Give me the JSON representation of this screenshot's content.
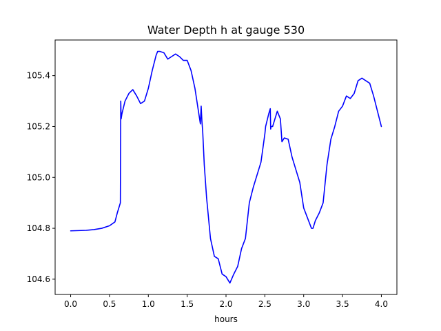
{
  "chart_data": {
    "type": "line",
    "title": "Water Depth h at gauge 530",
    "xlabel": "hours",
    "ylabel": "",
    "xlim": [
      -0.2,
      4.2
    ],
    "ylim": [
      104.54,
      105.54
    ],
    "xticks": [
      0.0,
      0.5,
      1.0,
      1.5,
      2.0,
      2.5,
      3.0,
      3.5,
      4.0
    ],
    "xtick_labels": [
      "0.0",
      "0.5",
      "1.0",
      "1.5",
      "2.0",
      "2.5",
      "3.0",
      "3.5",
      "4.0"
    ],
    "yticks": [
      104.6,
      104.8,
      105.0,
      105.2,
      105.4
    ],
    "ytick_labels": [
      "104.6",
      "104.8",
      "105.0",
      "105.2",
      "105.4"
    ],
    "grid": false,
    "series": [
      {
        "color": "#0000ff",
        "x": [
          0.0,
          0.2,
          0.3,
          0.4,
          0.5,
          0.57,
          0.6,
          0.64,
          0.645,
          0.65,
          0.66,
          0.7,
          0.75,
          0.8,
          0.85,
          0.9,
          0.95,
          1.0,
          1.05,
          1.1,
          1.12,
          1.15,
          1.2,
          1.25,
          1.3,
          1.35,
          1.4,
          1.45,
          1.5,
          1.55,
          1.6,
          1.65,
          1.67,
          1.68,
          1.69,
          1.7,
          1.72,
          1.75,
          1.8,
          1.85,
          1.9,
          1.95,
          2.0,
          2.05,
          2.1,
          2.15,
          2.2,
          2.25,
          2.3,
          2.35,
          2.4,
          2.45,
          2.5,
          2.51,
          2.55,
          2.57,
          2.575,
          2.58,
          2.6,
          2.65,
          2.66,
          2.7,
          2.72,
          2.75,
          2.8,
          2.85,
          2.9,
          2.95,
          3.0,
          3.05,
          3.1,
          3.12,
          3.15,
          3.2,
          3.25,
          3.3,
          3.35,
          3.4,
          3.45,
          3.5,
          3.55,
          3.6,
          3.65,
          3.7,
          3.75,
          3.8,
          3.85,
          3.9,
          3.95,
          4.0
        ],
        "y": [
          104.79,
          104.792,
          104.795,
          104.8,
          104.81,
          104.825,
          104.86,
          104.9,
          105.3,
          105.23,
          105.25,
          105.3,
          105.33,
          105.345,
          105.32,
          105.29,
          105.3,
          105.35,
          105.42,
          105.48,
          105.495,
          105.495,
          105.49,
          105.465,
          105.475,
          105.485,
          105.475,
          105.46,
          105.46,
          105.42,
          105.35,
          105.25,
          105.21,
          105.28,
          105.22,
          105.18,
          105.05,
          104.92,
          104.76,
          104.69,
          104.68,
          104.62,
          104.61,
          104.585,
          104.62,
          104.65,
          104.72,
          104.76,
          104.9,
          104.96,
          105.01,
          105.06,
          105.17,
          105.2,
          105.25,
          105.27,
          105.19,
          105.2,
          105.2,
          105.25,
          105.26,
          105.23,
          105.14,
          105.155,
          105.15,
          105.08,
          105.03,
          104.98,
          104.88,
          104.84,
          104.8,
          104.8,
          104.83,
          104.86,
          104.9,
          105.05,
          105.15,
          105.2,
          105.26,
          105.28,
          105.32,
          105.31,
          105.33,
          105.38,
          105.39,
          105.38,
          105.37,
          105.32,
          105.26,
          105.2
        ]
      }
    ]
  }
}
